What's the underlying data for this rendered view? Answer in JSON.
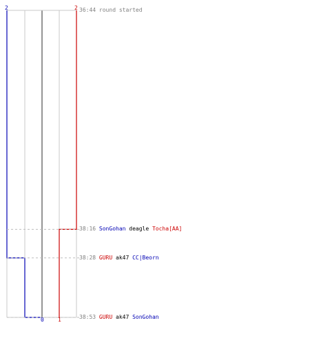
{
  "colors": {
    "team_blue": "#0000b4",
    "team_red": "#cc0000",
    "grid": "#c8c8c8",
    "center": "#707070",
    "dashed": "#bdbdbd",
    "time": "#808080",
    "text": "#000000"
  },
  "top_counts": {
    "blue": "2",
    "red": "2"
  },
  "bottom_counts": {
    "blue": "0",
    "red": "1"
  },
  "chart_data": {
    "type": "line",
    "title": "",
    "x_ticks": [
      -2,
      -1,
      0,
      1,
      2
    ],
    "ylim": [
      "36:44",
      "38:53"
    ],
    "series": [
      {
        "team": "blue",
        "values": [
          {
            "time": "36:44",
            "alive": 2
          },
          {
            "time": "38:28",
            "alive": 1
          },
          {
            "time": "38:53",
            "alive": 0
          }
        ]
      },
      {
        "team": "red",
        "values": [
          {
            "time": "36:44",
            "alive": 2
          },
          {
            "time": "38:16",
            "alive": 1
          }
        ]
      }
    ]
  },
  "events": [
    {
      "time": "36:44",
      "parts": [
        {
          "text": "round started",
          "style": "time"
        }
      ]
    },
    {
      "time": "38:16",
      "parts": [
        {
          "text": "SonGohan",
          "style": "blue"
        },
        {
          "text": " deagle ",
          "style": "plain"
        },
        {
          "text": "Tocha[AA]",
          "style": "red"
        }
      ]
    },
    {
      "time": "38:28",
      "parts": [
        {
          "text": "GURU",
          "style": "red"
        },
        {
          "text": " ak47 ",
          "style": "plain"
        },
        {
          "text": "CC|Beorn",
          "style": "blue"
        }
      ]
    },
    {
      "time": "38:53",
      "parts": [
        {
          "text": "GURU",
          "style": "red"
        },
        {
          "text": " ak47 ",
          "style": "plain"
        },
        {
          "text": "SonGohan",
          "style": "blue"
        }
      ]
    }
  ]
}
